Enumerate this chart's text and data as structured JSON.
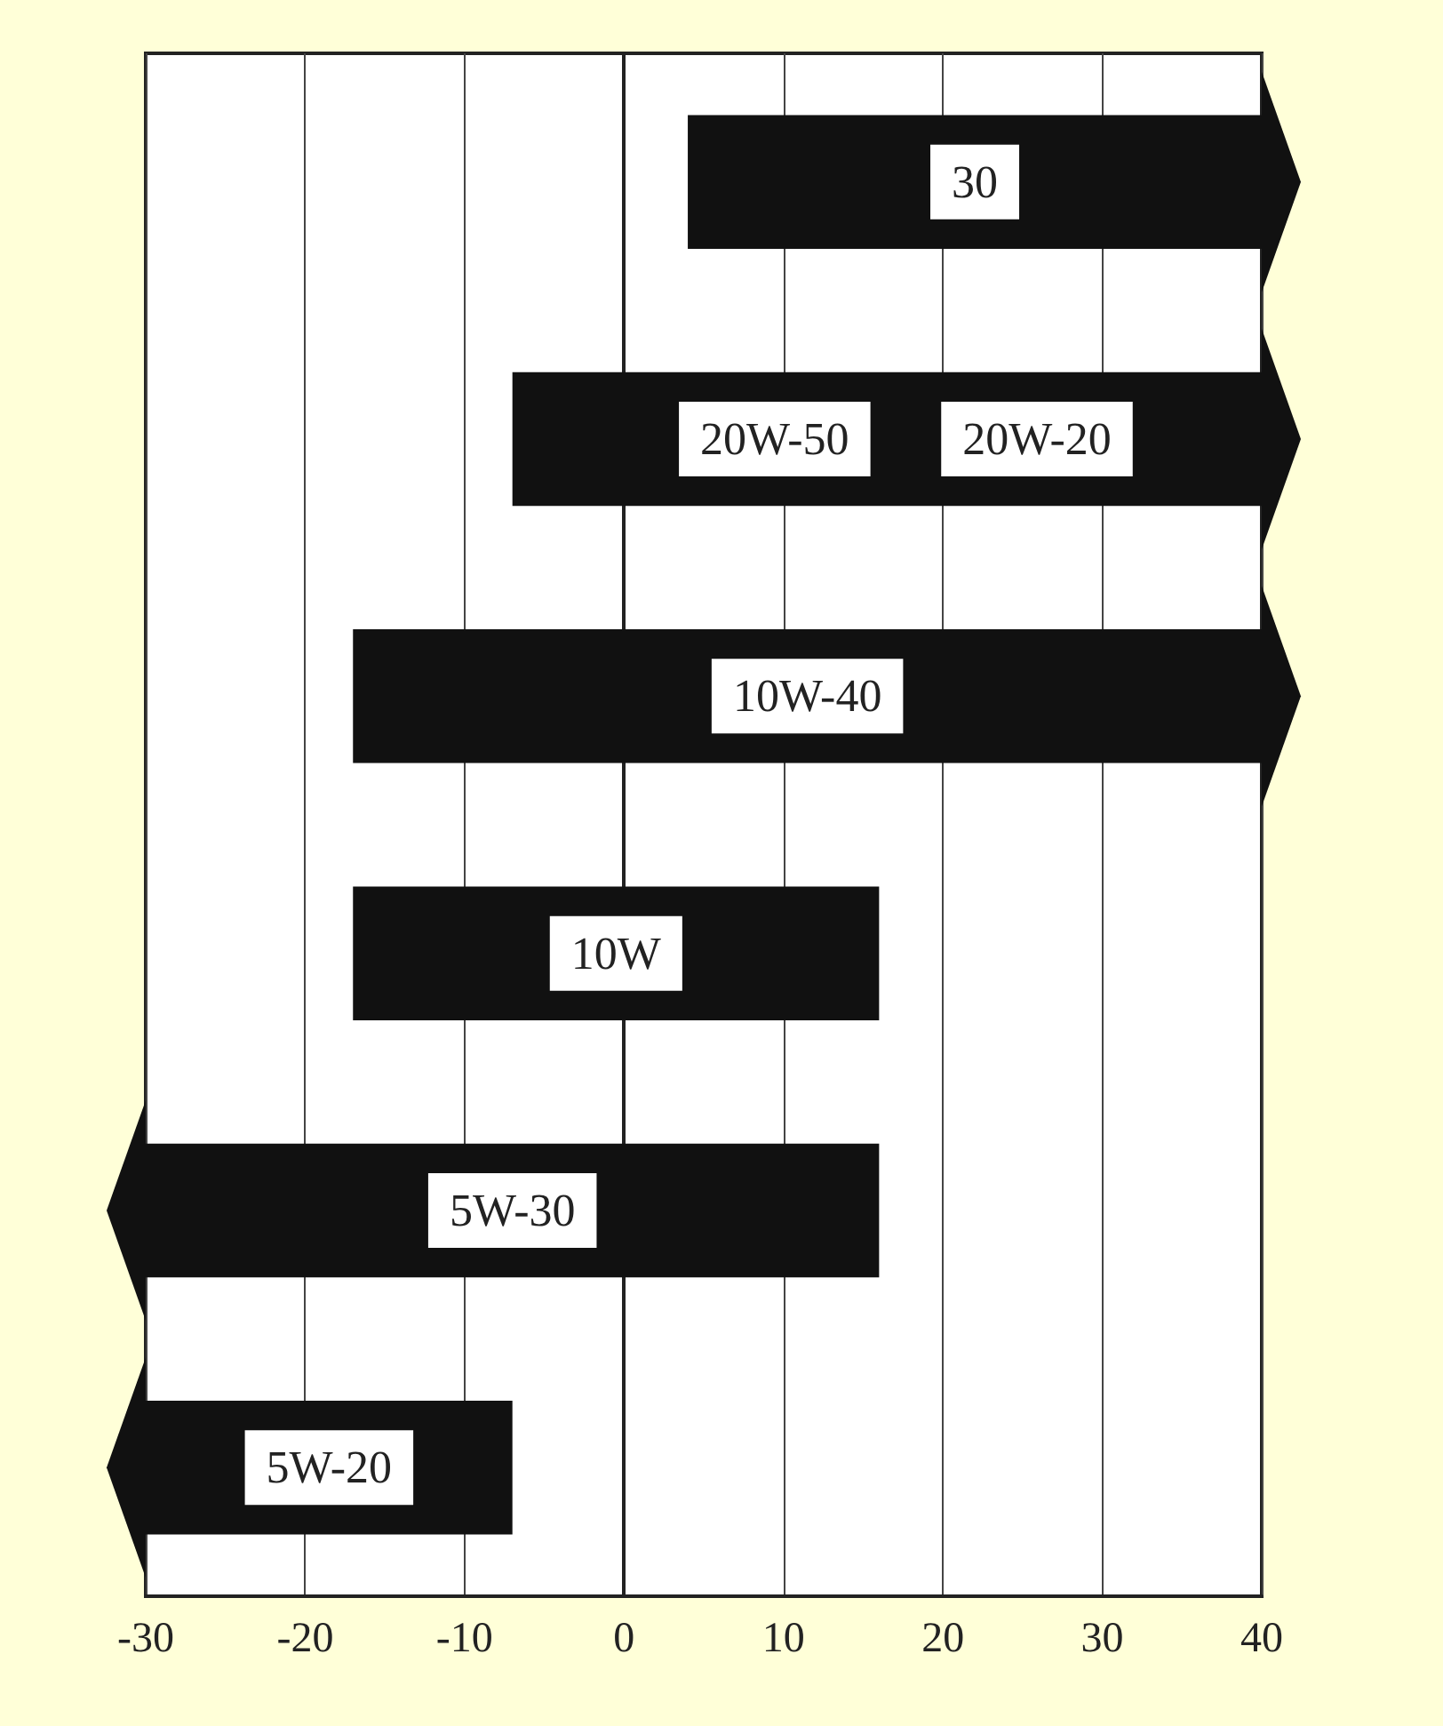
{
  "chart_data": {
    "type": "bar",
    "orientation": "horizontal",
    "categories": [
      "30",
      "20W-50",
      "10W-40",
      "10W",
      "5W-30",
      "5W-20"
    ],
    "base": [
      4,
      -7,
      -17,
      -17,
      -30,
      -30
    ],
    "values": [
      36,
      47,
      57,
      33,
      46,
      23
    ],
    "color": "#111111",
    "xlim": [
      -30,
      40
    ],
    "xticks": [
      -30,
      -20,
      -10,
      0,
      10,
      20,
      30,
      40
    ],
    "grid": "x",
    "tick_labels": "x",
    "annotations": [
      "20W-20"
    ]
  }
}
